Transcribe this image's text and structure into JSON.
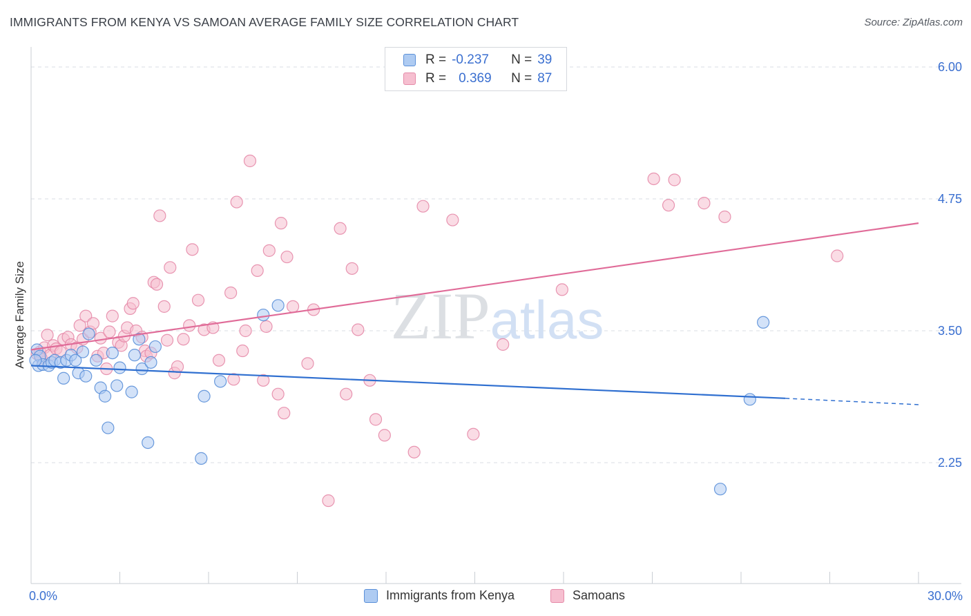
{
  "title": "IMMIGRANTS FROM KENYA VS SAMOAN AVERAGE FAMILY SIZE CORRELATION CHART",
  "source": "Source: ZipAtlas.com",
  "watermark": "ZIPatlas",
  "legend_top": [
    {
      "r_label": "R =",
      "r_value": "-0.237",
      "n_label": "N =",
      "n_value": "39"
    },
    {
      "r_label": "R =",
      "r_value": "0.369",
      "n_label": "N =",
      "n_value": "87"
    }
  ],
  "colors": {
    "kenya_fill": "#aecbf2",
    "kenya_stroke": "#5a8fd8",
    "kenya_line": "#2f6fd0",
    "samoan_fill": "#f6bfd0",
    "samoan_stroke": "#e58aa8",
    "samoan_line": "#e06b98",
    "axis_label": "#3a6fd0",
    "grid": "#d9dde3"
  },
  "chart_data": {
    "type": "scatter",
    "title": "IMMIGRANTS FROM KENYA VS SAMOAN AVERAGE FAMILY SIZE CORRELATION CHART",
    "xlabel": "",
    "ylabel": "Average Family Size",
    "xlim": [
      0,
      30
    ],
    "ylim": [
      1.25,
      6.15
    ],
    "x_tick_labels": [
      "0.0%",
      "30.0%"
    ],
    "y_ticks": [
      2.25,
      3.5,
      4.75,
      6.0
    ],
    "y_tick_labels": [
      "2.25",
      "3.50",
      "4.75",
      "6.00"
    ],
    "grid": "horizontal dashed",
    "legend_position": "top-center and bottom",
    "series": [
      {
        "name": "Immigrants from Kenya",
        "r": -0.237,
        "n": 39,
        "trend": {
          "x0": 0,
          "y0": 3.17,
          "x1": 25.5,
          "y1": 2.86,
          "dash_to_x": 30,
          "dash_to_y": 2.8
        },
        "points": [
          [
            0.2,
            3.32
          ],
          [
            0.3,
            3.26
          ],
          [
            0.25,
            3.17
          ],
          [
            0.4,
            3.18
          ],
          [
            0.6,
            3.17
          ],
          [
            0.7,
            3.2
          ],
          [
            0.8,
            3.22
          ],
          [
            1.0,
            3.2
          ],
          [
            1.1,
            3.05
          ],
          [
            1.2,
            3.22
          ],
          [
            1.35,
            3.27
          ],
          [
            1.5,
            3.22
          ],
          [
            1.6,
            3.1
          ],
          [
            1.75,
            3.3
          ],
          [
            1.85,
            3.07
          ],
          [
            1.95,
            3.47
          ],
          [
            2.2,
            3.22
          ],
          [
            2.35,
            2.96
          ],
          [
            2.5,
            2.88
          ],
          [
            2.6,
            2.58
          ],
          [
            2.75,
            3.29
          ],
          [
            2.9,
            2.98
          ],
          [
            3.0,
            3.15
          ],
          [
            3.4,
            2.92
          ],
          [
            3.5,
            3.27
          ],
          [
            3.65,
            3.42
          ],
          [
            3.75,
            3.14
          ],
          [
            3.95,
            2.44
          ],
          [
            4.05,
            3.2
          ],
          [
            4.2,
            3.35
          ],
          [
            5.75,
            2.29
          ],
          [
            5.85,
            2.88
          ],
          [
            6.4,
            3.02
          ],
          [
            7.85,
            3.65
          ],
          [
            8.35,
            3.74
          ],
          [
            23.3,
            2.0
          ],
          [
            24.3,
            2.85
          ],
          [
            24.75,
            3.58
          ],
          [
            0.15,
            3.22
          ]
        ]
      },
      {
        "name": "Samoans",
        "r": 0.369,
        "n": 87,
        "trend": {
          "x0": 0,
          "y0": 3.32,
          "x1": 30,
          "y1": 4.52
        },
        "points": [
          [
            0.2,
            3.28
          ],
          [
            0.3,
            3.3
          ],
          [
            0.35,
            3.24
          ],
          [
            0.45,
            3.34
          ],
          [
            0.55,
            3.46
          ],
          [
            0.65,
            3.27
          ],
          [
            0.75,
            3.36
          ],
          [
            0.85,
            3.33
          ],
          [
            1.0,
            3.3
          ],
          [
            1.1,
            3.42
          ],
          [
            1.25,
            3.44
          ],
          [
            1.35,
            3.37
          ],
          [
            1.55,
            3.34
          ],
          [
            1.65,
            3.55
          ],
          [
            1.75,
            3.42
          ],
          [
            1.85,
            3.64
          ],
          [
            2.0,
            3.49
          ],
          [
            2.1,
            3.57
          ],
          [
            2.25,
            3.26
          ],
          [
            2.35,
            3.43
          ],
          [
            2.45,
            3.29
          ],
          [
            2.55,
            3.14
          ],
          [
            2.65,
            3.49
          ],
          [
            2.75,
            3.64
          ],
          [
            2.95,
            3.39
          ],
          [
            3.05,
            3.36
          ],
          [
            3.15,
            3.45
          ],
          [
            3.25,
            3.53
          ],
          [
            3.35,
            3.71
          ],
          [
            3.45,
            3.76
          ],
          [
            3.55,
            3.5
          ],
          [
            3.75,
            3.44
          ],
          [
            3.85,
            3.31
          ],
          [
            3.9,
            3.26
          ],
          [
            4.05,
            3.29
          ],
          [
            4.15,
            3.96
          ],
          [
            4.25,
            3.94
          ],
          [
            4.35,
            4.59
          ],
          [
            4.5,
            3.73
          ],
          [
            4.6,
            3.41
          ],
          [
            4.7,
            4.1
          ],
          [
            4.85,
            3.1
          ],
          [
            4.95,
            3.16
          ],
          [
            5.15,
            3.42
          ],
          [
            5.35,
            3.55
          ],
          [
            5.45,
            4.27
          ],
          [
            5.65,
            3.79
          ],
          [
            5.85,
            3.51
          ],
          [
            6.15,
            3.53
          ],
          [
            6.35,
            3.22
          ],
          [
            6.75,
            3.86
          ],
          [
            6.85,
            3.04
          ],
          [
            6.95,
            4.72
          ],
          [
            7.15,
            3.31
          ],
          [
            7.25,
            3.5
          ],
          [
            7.4,
            5.11
          ],
          [
            7.65,
            4.07
          ],
          [
            7.85,
            3.03
          ],
          [
            7.95,
            3.54
          ],
          [
            8.05,
            4.26
          ],
          [
            8.35,
            2.9
          ],
          [
            8.45,
            4.52
          ],
          [
            8.55,
            2.72
          ],
          [
            8.65,
            4.2
          ],
          [
            8.85,
            3.73
          ],
          [
            9.35,
            3.19
          ],
          [
            9.55,
            3.7
          ],
          [
            10.05,
            1.89
          ],
          [
            10.45,
            4.47
          ],
          [
            10.65,
            2.9
          ],
          [
            10.85,
            4.09
          ],
          [
            11.05,
            3.51
          ],
          [
            11.45,
            3.03
          ],
          [
            11.65,
            2.66
          ],
          [
            11.95,
            2.51
          ],
          [
            12.95,
            2.35
          ],
          [
            13.25,
            4.68
          ],
          [
            14.25,
            4.55
          ],
          [
            14.95,
            2.52
          ],
          [
            15.95,
            3.37
          ],
          [
            17.95,
            3.89
          ],
          [
            21.05,
            4.94
          ],
          [
            21.55,
            4.69
          ],
          [
            21.75,
            4.93
          ],
          [
            22.75,
            4.71
          ],
          [
            23.45,
            4.58
          ],
          [
            27.25,
            4.21
          ]
        ]
      }
    ]
  }
}
